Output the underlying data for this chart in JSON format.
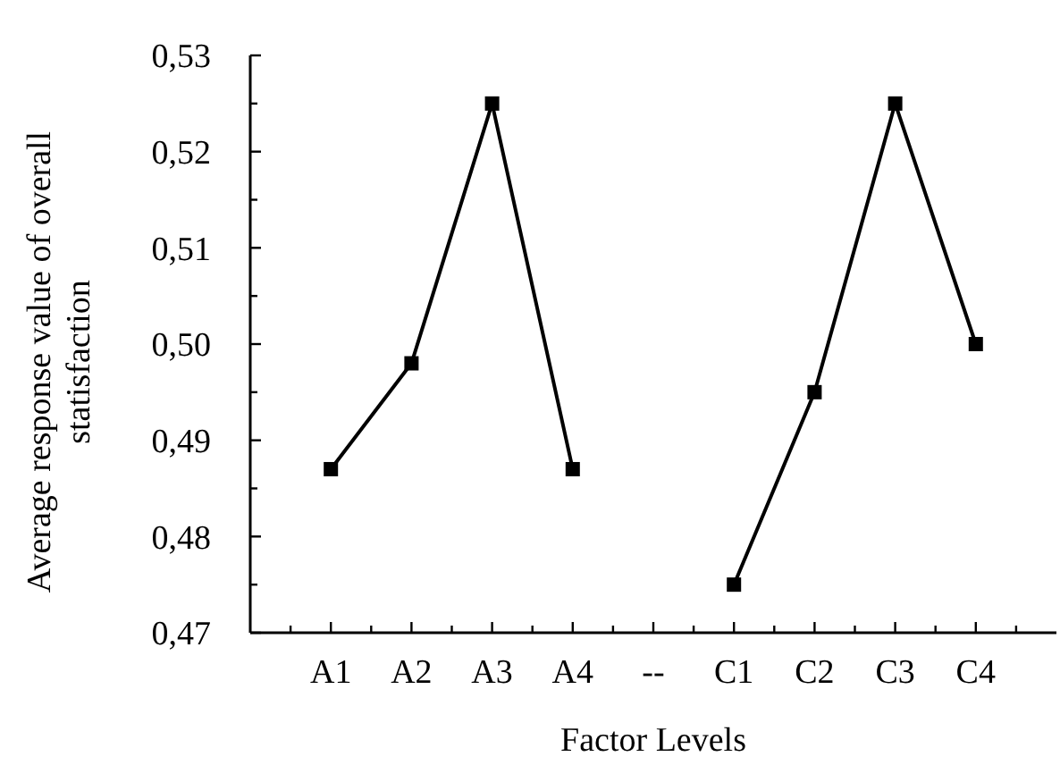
{
  "chart_data": {
    "type": "line",
    "xlabel": "Factor Levels",
    "ylabel": "Average response value of overall statisfaction",
    "categories": [
      "A1",
      "A2",
      "A3",
      "A4",
      "--",
      "C1",
      "C2",
      "C3",
      "C4"
    ],
    "series": [
      {
        "color": "#000000",
        "values": [
          0.487,
          0.498,
          0.525,
          0.487,
          null,
          null,
          null,
          null,
          null
        ]
      },
      {
        "color": "#000000",
        "values": [
          null,
          null,
          null,
          null,
          null,
          0.475,
          0.495,
          0.525,
          0.5
        ]
      }
    ],
    "ylim": [
      0.47,
      0.53
    ],
    "yticks": [
      {
        "value": 0.47,
        "label": "0,47"
      },
      {
        "value": 0.475,
        "label": null
      },
      {
        "value": 0.48,
        "label": "0,48"
      },
      {
        "value": 0.485,
        "label": null
      },
      {
        "value": 0.49,
        "label": "0,49"
      },
      {
        "value": 0.495,
        "label": null
      },
      {
        "value": 0.5,
        "label": "0,50"
      },
      {
        "value": 0.505,
        "label": null
      },
      {
        "value": 0.51,
        "label": "0,51"
      },
      {
        "value": 0.515,
        "label": null
      },
      {
        "value": 0.52,
        "label": "0,52"
      },
      {
        "value": 0.525,
        "label": null
      },
      {
        "value": 0.53,
        "label": "0,53"
      }
    ],
    "grid": false,
    "marker": "square",
    "line_style": "solid"
  }
}
